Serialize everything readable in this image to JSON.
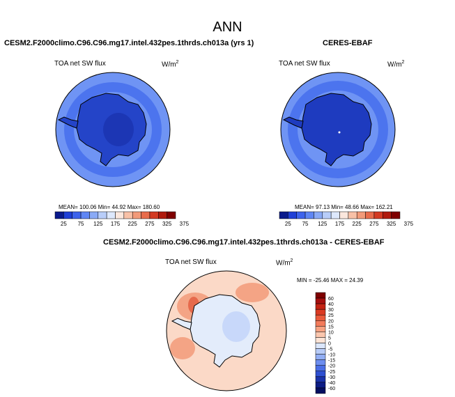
{
  "page": {
    "season": "ANN"
  },
  "panels": {
    "model": {
      "title": "CESM2.F2000climo.C96.C96.mg17.intel.432pes.1thrds.ch013a (yrs 1)",
      "variable": "TOA net SW flux",
      "units": "W/m",
      "units_sup": "2",
      "stats": "MEAN= 100.06  Min=  44.92  Max= 180.60"
    },
    "obs": {
      "title": "CERES-EBAF",
      "variable": "TOA net SW flux",
      "units": "W/m",
      "units_sup": "2",
      "stats": "MEAN=  97.13  Min=  48.66  Max= 162.21"
    },
    "diff": {
      "title": "CESM2.F2000climo.C96.C96.mg17.intel.432pes.1thrds.ch013a - CERES-EBAF",
      "variable": "TOA net SW flux",
      "units": "W/m",
      "units_sup": "2",
      "minmax": "MIN = -25.46  MAX =  24.39"
    }
  },
  "colorbar_main": {
    "labels": [
      "25",
      "75",
      "125",
      "175",
      "225",
      "275",
      "325",
      "375"
    ],
    "colors": [
      "#0a1a8c",
      "#1f3fd6",
      "#3d63ec",
      "#5f86f4",
      "#8aaaf6",
      "#b8cdf9",
      "#dde8fc",
      "#fbe7dd",
      "#f8c1a7",
      "#f29a79",
      "#e86c4b",
      "#d33a22",
      "#b01a0d",
      "#7f0000"
    ]
  },
  "colorbar_diff": {
    "labels": [
      "60",
      "40",
      "30",
      "25",
      "20",
      "15",
      "10",
      "5",
      "0",
      "-5",
      "-10",
      "-15",
      "-20",
      "-25",
      "-30",
      "-40",
      "-60"
    ],
    "colors": [
      "#7f0000",
      "#a50f0f",
      "#c42313",
      "#db3a22",
      "#ea5a3b",
      "#f37b5b",
      "#f8a282",
      "#fbc6ad",
      "#fde4d6",
      "#dbe6fb",
      "#b8ccf8",
      "#92aef4",
      "#6d8ef0",
      "#4a6ee6",
      "#2f50d2",
      "#1b33aa",
      "#0d1d86",
      "#050f60"
    ]
  },
  "map_colors": {
    "edge_high": "#6f94f4",
    "mid": "#4c74ee",
    "land": "#2444c8",
    "land_core": "#1c36b4",
    "obs_land": "#1e3bbf",
    "diff_ocean": "#fbd9c7",
    "diff_warm": "#f4a485",
    "diff_hot": "#e66a4c",
    "diff_land": "#e3ecfb",
    "diff_cool": "#c8d8fa"
  }
}
